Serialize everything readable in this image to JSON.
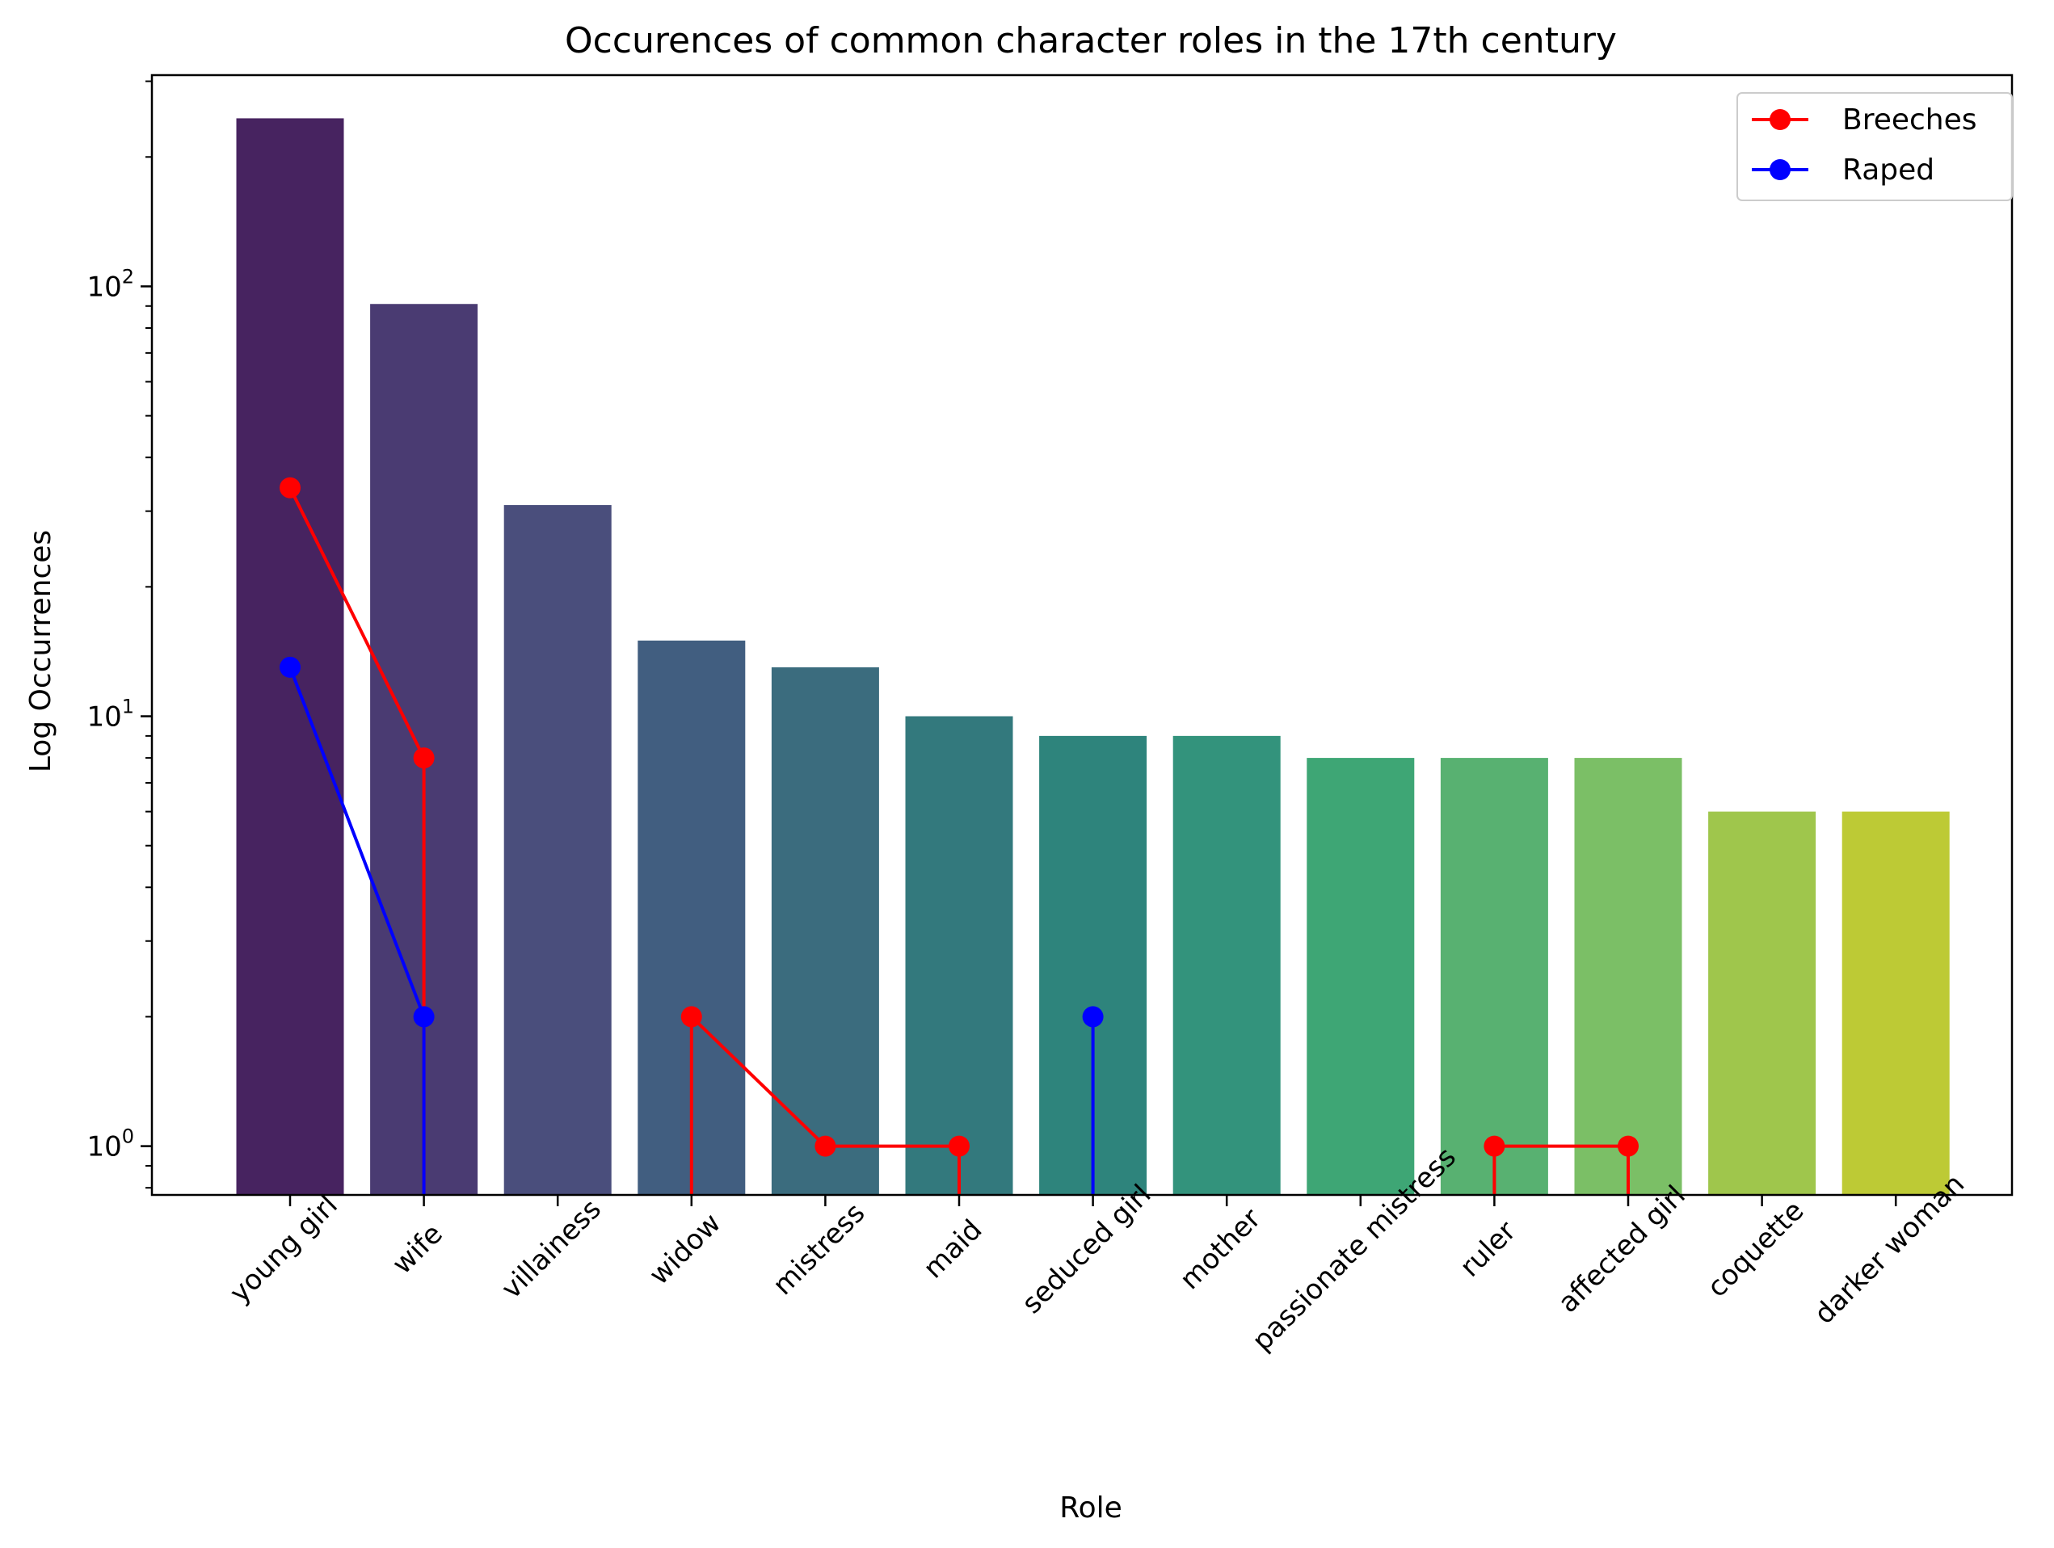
{
  "chart_data": {
    "type": "bar",
    "title": "Occurences of common character roles in the 17th century",
    "xlabel": "Role",
    "ylabel": "Log Occurrences",
    "yscale": "log",
    "ylim": [
      0.77,
      310
    ],
    "yticks": [
      {
        "value": 1,
        "base": "10",
        "exp": "0"
      },
      {
        "value": 10,
        "base": "10",
        "exp": "1"
      },
      {
        "value": 100,
        "base": "10",
        "exp": "2"
      }
    ],
    "categories": [
      "young girl",
      "wife",
      "villainess",
      "widow",
      "mistress",
      "maid",
      "seduced girl",
      "mother",
      "passionate mistress",
      "ruler",
      "affected girl",
      "coquette",
      "darker woman"
    ],
    "values": [
      246,
      91,
      31,
      15,
      13,
      10,
      9,
      9,
      8,
      8,
      8,
      6,
      6
    ],
    "bar_colors": [
      "#472360",
      "#4a3b72",
      "#4a4e7c",
      "#415e80",
      "#3b6c7e",
      "#33797d",
      "#2e847c",
      "#33937c",
      "#3ea675",
      "#58b171",
      "#7bbf66",
      "#9fc64c",
      "#bdca35"
    ],
    "series": [
      {
        "name": "Breeches",
        "color": "#ff0000",
        "values": [
          34,
          8,
          null,
          2,
          1,
          1,
          null,
          null,
          null,
          1,
          1,
          null,
          null
        ]
      },
      {
        "name": "Raped",
        "color": "#0000ff",
        "values": [
          13,
          2,
          null,
          null,
          null,
          null,
          2,
          null,
          null,
          null,
          null,
          null,
          null
        ]
      }
    ],
    "grid": false,
    "legend": "top-right"
  }
}
